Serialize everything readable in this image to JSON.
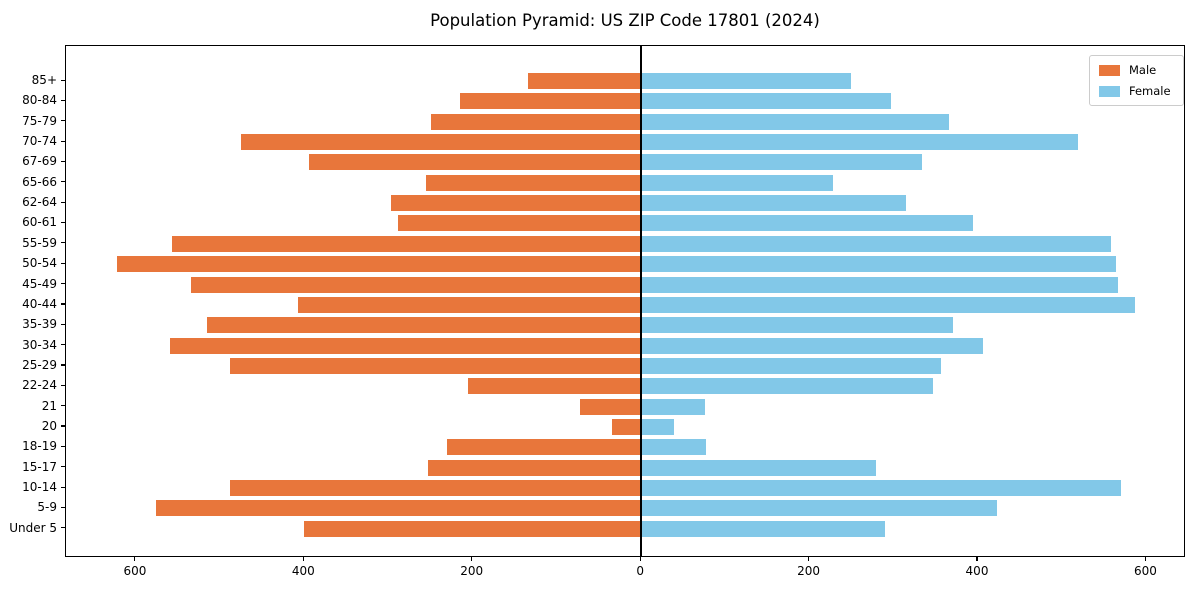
{
  "figure": {
    "title": "Population Pyramid: US ZIP Code 17801 (2024)"
  },
  "chart_data": {
    "type": "bar",
    "variant": "population-pyramid",
    "title": "Population Pyramid: US ZIP Code 17801 (2024)",
    "categories": [
      "85+",
      "80-84",
      "75-79",
      "70-74",
      "67-69",
      "65-66",
      "62-64",
      "60-61",
      "55-59",
      "50-54",
      "45-49",
      "40-44",
      "35-39",
      "30-34",
      "25-29",
      "22-24",
      "21",
      "20",
      "18-19",
      "15-17",
      "10-14",
      "5-9",
      "Under 5"
    ],
    "series": [
      {
        "name": "Male",
        "side": "left",
        "color": "#E8763B",
        "values": [
          134,
          215,
          250,
          475,
          395,
          255,
          297,
          289,
          557,
          622,
          534,
          407,
          515,
          560,
          488,
          206,
          73,
          35,
          231,
          253,
          488,
          576,
          400
        ]
      },
      {
        "name": "Female",
        "side": "right",
        "color": "#82C8E8",
        "values": [
          249,
          297,
          366,
          519,
          334,
          228,
          315,
          394,
          558,
          564,
          566,
          587,
          370,
          406,
          356,
          346,
          76,
          39,
          77,
          279,
          570,
          423,
          289
        ]
      }
    ],
    "xlim": [
      -683,
      647
    ],
    "x_tick_values": [
      -600,
      -400,
      -200,
      0,
      200,
      400,
      600
    ],
    "x_tick_labels": [
      "600",
      "400",
      "200",
      "0",
      "200",
      "400",
      "600"
    ],
    "ylabel": "",
    "xlabel": "",
    "grid": false,
    "zero_line": true,
    "legend_position": "upper-right"
  }
}
